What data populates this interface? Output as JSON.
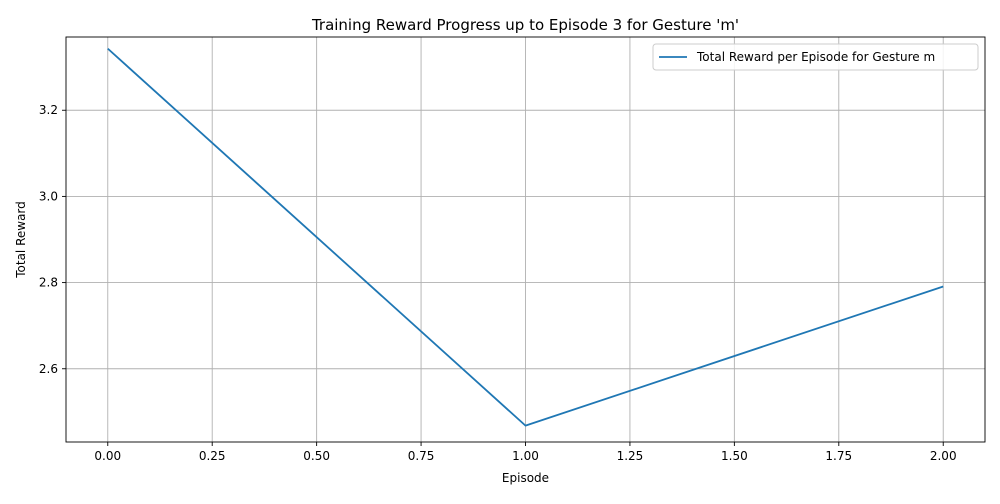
{
  "chart_data": {
    "type": "line",
    "title": "Training Reward Progress up to Episode 3 for Gesture 'm'",
    "xlabel": "Episode",
    "ylabel": "Total Reward",
    "xlim": [
      -0.1,
      2.1
    ],
    "ylim": [
      2.43,
      3.37
    ],
    "x_ticks": [
      0.0,
      0.25,
      0.5,
      0.75,
      1.0,
      1.25,
      1.5,
      1.75,
      2.0
    ],
    "x_tick_labels": [
      "0.00",
      "0.25",
      "0.50",
      "0.75",
      "1.00",
      "1.25",
      "1.50",
      "1.75",
      "2.00"
    ],
    "y_ticks": [
      2.6,
      2.8,
      3.0,
      3.2
    ],
    "y_tick_labels": [
      "2.6",
      "2.8",
      "3.0",
      "3.2"
    ],
    "grid": true,
    "legend_position": "upper-right",
    "series": [
      {
        "name": "Total Reward per Episode for Gesture m",
        "color": "#1f77b4",
        "x": [
          0,
          1,
          2
        ],
        "y": [
          3.343,
          2.468,
          2.791
        ]
      }
    ]
  }
}
